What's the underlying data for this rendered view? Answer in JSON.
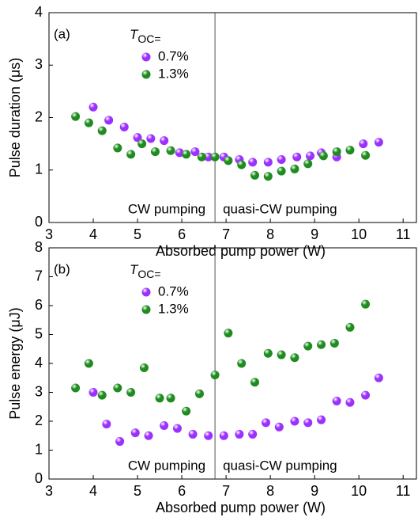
{
  "chart_data": [
    {
      "type": "scatter",
      "panel_label": "(a)",
      "xlabel": "Absorbed pump power (W)",
      "ylabel": "Pulse duration (μs)",
      "xlim": [
        3,
        11.3
      ],
      "xticks": [
        3,
        4,
        5,
        6,
        7,
        8,
        9,
        10,
        11
      ],
      "ylim": [
        0,
        4
      ],
      "yticks": [
        0,
        1,
        2,
        3,
        4
      ],
      "legend_title": {
        "main": "T",
        "sub": "OC="
      },
      "annotations": [
        "CW pumping",
        "quasi-CW pumping"
      ],
      "vline_x": 6.75,
      "series": [
        {
          "name": "0.7%",
          "color": "#9b30ff",
          "x": [
            4.0,
            4.35,
            4.7,
            5.0,
            5.3,
            5.6,
            5.95,
            6.3,
            6.6,
            6.95,
            7.3,
            7.6,
            7.95,
            8.25,
            8.6,
            8.9,
            9.15,
            9.5,
            10.1,
            10.45
          ],
          "values": [
            2.2,
            1.95,
            1.82,
            1.62,
            1.6,
            1.56,
            1.33,
            1.35,
            1.25,
            1.25,
            1.2,
            1.15,
            1.15,
            1.2,
            1.25,
            1.27,
            1.33,
            1.25,
            1.5,
            1.53
          ]
        },
        {
          "name": "1.3%",
          "color": "#1e8c1e",
          "x": [
            3.6,
            3.9,
            4.2,
            4.55,
            4.85,
            5.1,
            5.4,
            5.75,
            6.1,
            6.45,
            6.75,
            7.05,
            7.35,
            7.65,
            7.95,
            8.25,
            8.55,
            8.85,
            9.2,
            9.5,
            9.8,
            10.15
          ],
          "values": [
            2.02,
            1.9,
            1.75,
            1.42,
            1.3,
            1.5,
            1.35,
            1.37,
            1.3,
            1.25,
            1.25,
            1.18,
            1.1,
            0.9,
            0.88,
            0.98,
            1.02,
            1.12,
            1.27,
            1.35,
            1.38,
            1.28
          ]
        }
      ]
    },
    {
      "type": "scatter",
      "panel_label": "(b)",
      "xlabel": "Absorbed pump power (W)",
      "ylabel": "Pulse energy (μJ)",
      "xlim": [
        3,
        11.3
      ],
      "xticks": [
        3,
        4,
        5,
        6,
        7,
        8,
        9,
        10,
        11
      ],
      "ylim": [
        0,
        8
      ],
      "yticks": [
        0,
        1,
        2,
        3,
        4,
        5,
        6,
        7,
        8
      ],
      "legend_title": {
        "main": "T",
        "sub": "OC="
      },
      "annotations": [
        "CW pumping",
        "quasi-CW pumping"
      ],
      "vline_x": 6.75,
      "series": [
        {
          "name": "0.7%",
          "color": "#9b30ff",
          "x": [
            4.0,
            4.3,
            4.6,
            4.95,
            5.25,
            5.6,
            5.9,
            6.25,
            6.6,
            6.95,
            7.3,
            7.6,
            7.9,
            8.2,
            8.55,
            8.85,
            9.15,
            9.5,
            9.8,
            10.15,
            10.45
          ],
          "values": [
            3.0,
            1.9,
            1.3,
            1.6,
            1.5,
            1.85,
            1.75,
            1.55,
            1.5,
            1.5,
            1.55,
            1.55,
            1.95,
            1.8,
            2.0,
            1.95,
            2.05,
            2.7,
            2.65,
            2.9,
            3.5
          ]
        },
        {
          "name": "1.3%",
          "color": "#1e8c1e",
          "x": [
            3.6,
            3.9,
            4.2,
            4.55,
            4.85,
            5.15,
            5.5,
            5.75,
            6.1,
            6.4,
            6.75,
            7.05,
            7.35,
            7.65,
            7.95,
            8.25,
            8.55,
            8.85,
            9.15,
            9.45,
            9.8,
            10.15
          ],
          "values": [
            3.15,
            4.0,
            2.9,
            3.15,
            3.0,
            3.85,
            2.8,
            2.8,
            2.35,
            2.95,
            3.6,
            5.05,
            4.0,
            3.35,
            4.35,
            4.3,
            4.2,
            4.6,
            4.65,
            4.7,
            5.25,
            6.05
          ]
        }
      ]
    }
  ]
}
